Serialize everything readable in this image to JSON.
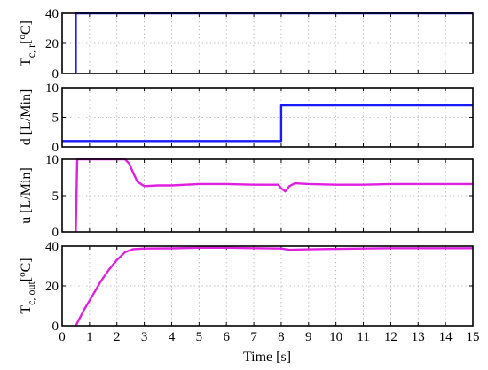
{
  "chart_data": [
    {
      "type": "line",
      "ylabel": "T",
      "ylabel_sub": "c, r",
      "ylabel_unit_open": "[",
      "ylabel_unit_sup": "o",
      "ylabel_unit_close": "C]",
      "xlim": [
        0,
        15
      ],
      "ylim": [
        0,
        40
      ],
      "yticks": [
        0,
        20,
        40
      ],
      "grid": true,
      "series": [
        {
          "color": "#1a1aff",
          "x": [
            0.5,
            0.5,
            15
          ],
          "y": [
            0,
            40,
            40
          ]
        }
      ]
    },
    {
      "type": "line",
      "ylabel": "d [L/Min]",
      "xlim": [
        0,
        15
      ],
      "ylim": [
        0,
        10
      ],
      "yticks": [
        0,
        5,
        10
      ],
      "grid": true,
      "series": [
        {
          "color": "#1a1aff",
          "x": [
            0,
            8,
            8,
            15
          ],
          "y": [
            1,
            1,
            7,
            7
          ]
        }
      ]
    },
    {
      "type": "line",
      "ylabel": "u [L/Min]",
      "xlim": [
        0,
        15
      ],
      "ylim": [
        0,
        10
      ],
      "yticks": [
        0,
        5,
        10
      ],
      "grid": true,
      "series": [
        {
          "color": "#e020e0",
          "x": [
            0.5,
            0.55,
            2.3,
            2.45,
            2.6,
            2.75,
            3,
            3.5,
            4,
            5,
            6,
            7,
            7.9,
            8.0,
            8.15,
            8.3,
            8.5,
            9,
            10,
            11,
            12,
            13,
            14,
            15
          ],
          "y": [
            0,
            10,
            10,
            9.4,
            8.1,
            6.9,
            6.3,
            6.4,
            6.4,
            6.6,
            6.6,
            6.5,
            6.5,
            6.0,
            5.6,
            6.3,
            6.7,
            6.6,
            6.5,
            6.5,
            6.6,
            6.6,
            6.6,
            6.6
          ]
        }
      ]
    },
    {
      "type": "line",
      "ylabel": "T",
      "ylabel_sub": "c, out",
      "ylabel_unit_open": "[",
      "ylabel_unit_sup": "o",
      "ylabel_unit_close": "C]",
      "xlabel": "Time [s]",
      "xlim": [
        0,
        15
      ],
      "ylim": [
        0,
        40
      ],
      "yticks": [
        0,
        20,
        40
      ],
      "xticks": [
        0,
        1,
        2,
        3,
        4,
        5,
        6,
        7,
        8,
        9,
        10,
        11,
        12,
        13,
        14,
        15
      ],
      "grid": true,
      "series": [
        {
          "color": "#e020e0",
          "x": [
            0.5,
            0.8,
            1.1,
            1.4,
            1.7,
            2.0,
            2.3,
            2.6,
            3,
            4,
            5,
            6,
            7,
            8,
            8.3,
            9,
            10,
            11,
            12,
            13,
            14,
            15
          ],
          "y": [
            0,
            8,
            15,
            22,
            28,
            33,
            37,
            38.5,
            38.8,
            38.9,
            39.2,
            39.2,
            39.0,
            38.8,
            38.2,
            38.4,
            38.6,
            38.8,
            39.0,
            39.0,
            39.0,
            39.0
          ]
        }
      ]
    }
  ]
}
